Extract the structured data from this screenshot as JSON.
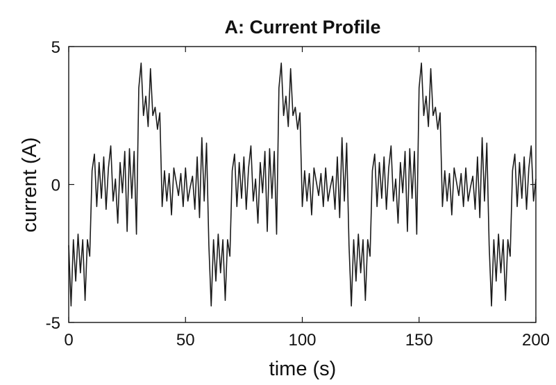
{
  "chart_data": {
    "type": "line",
    "title": "A: Current Profile",
    "xlabel": "time (s)",
    "ylabel": "current (A)",
    "xlim": [
      0,
      200
    ],
    "ylim": [
      -5,
      5
    ],
    "xticks": [
      0,
      50,
      100,
      150,
      200
    ],
    "yticks": [
      -5,
      0,
      5
    ],
    "xtick_labels": [
      "0",
      "50",
      "100",
      "150",
      "200"
    ],
    "ytick_labels": [
      "-5",
      "0",
      "5"
    ],
    "grid": false,
    "line_color": "#1a1a1a",
    "period_s": 60,
    "segments": [
      {
        "start": 0,
        "end": 10,
        "level": -2.5
      },
      {
        "start": 10,
        "end": 30,
        "level": 0.3
      },
      {
        "start": 30,
        "end": 40,
        "level": 3.0
      },
      {
        "start": 40,
        "end": 60,
        "level": -0.1
      }
    ],
    "series": [
      {
        "x": [
          0,
          1,
          2,
          3,
          4,
          5,
          6,
          7,
          8,
          9,
          10,
          11,
          12,
          13,
          14,
          15,
          16,
          17,
          18,
          19,
          20,
          21,
          22,
          23,
          24,
          25,
          26,
          27,
          28,
          29,
          30,
          31,
          32,
          33,
          34,
          35,
          36,
          37,
          38,
          39,
          40,
          41,
          42,
          43,
          44,
          45,
          46,
          47,
          48,
          49,
          50,
          51,
          52,
          53,
          54,
          55,
          56,
          57,
          58,
          59,
          60,
          61,
          62,
          63,
          64,
          65,
          66,
          67,
          68,
          69,
          70,
          71,
          72,
          73,
          74,
          75,
          76,
          77,
          78,
          79,
          80,
          81,
          82,
          83,
          84,
          85,
          86,
          87,
          88,
          89,
          90,
          91,
          92,
          93,
          94,
          95,
          96,
          97,
          98,
          99,
          100,
          101,
          102,
          103,
          104,
          105,
          106,
          107,
          108,
          109,
          110,
          111,
          112,
          113,
          114,
          115,
          116,
          117,
          118,
          119,
          120,
          121,
          122,
          123,
          124,
          125,
          126,
          127,
          128,
          129,
          130,
          131,
          132,
          133,
          134,
          135,
          136,
          137,
          138,
          139,
          140,
          141,
          142,
          143,
          144,
          145,
          146,
          147,
          148,
          149,
          150,
          151,
          152,
          153,
          154,
          155,
          156,
          157,
          158,
          159,
          160,
          161,
          162,
          163,
          164,
          165,
          166,
          167,
          168,
          169,
          170,
          171,
          172,
          173,
          174,
          175,
          176,
          177,
          178,
          179,
          180,
          181,
          182,
          183,
          184,
          185,
          186,
          187,
          188,
          189,
          190,
          191,
          192,
          193,
          194,
          195,
          196,
          197,
          198,
          199,
          200
        ],
        "y": [
          -2.2,
          -4.4,
          -2.0,
          -3.5,
          -1.8,
          -3.2,
          -2.0,
          -4.2,
          -2.0,
          -2.6,
          0.5,
          1.1,
          -0.8,
          0.8,
          -0.5,
          1.0,
          -0.9,
          0.6,
          1.4,
          -0.6,
          0.2,
          -1.4,
          0.8,
          -0.3,
          1.2,
          -1.7,
          1.3,
          -0.5,
          1.2,
          -1.8,
          3.5,
          4.4,
          2.5,
          3.2,
          2.1,
          4.2,
          2.5,
          2.8,
          2.0,
          2.6,
          -0.8,
          0.5,
          -0.6,
          0.4,
          -1.1,
          0.6,
          0.1,
          -0.4,
          0.4,
          -0.8,
          0.6,
          -0.6,
          -0.1,
          0.3,
          -0.9,
          1.0,
          -1.2,
          1.7,
          -0.6,
          1.5,
          -2.2,
          -4.4,
          -2.0,
          -3.5,
          -1.8,
          -3.2,
          -2.0,
          -4.2,
          -2.0,
          -2.6,
          0.5,
          1.1,
          -0.8,
          0.8,
          -0.5,
          1.0,
          -0.9,
          0.6,
          1.4,
          -0.6,
          0.2,
          -1.4,
          0.8,
          -0.3,
          1.2,
          -1.7,
          1.3,
          -0.5,
          1.2,
          -1.8,
          3.5,
          4.4,
          2.5,
          3.2,
          2.1,
          4.2,
          2.5,
          2.8,
          2.0,
          2.6,
          -0.8,
          0.5,
          -0.6,
          0.4,
          -1.1,
          0.6,
          0.1,
          -0.4,
          0.4,
          -0.8,
          0.6,
          -0.6,
          -0.1,
          0.3,
          -0.9,
          1.0,
          -1.2,
          1.7,
          -0.6,
          1.5,
          -2.2,
          -4.4,
          -2.0,
          -3.5,
          -1.8,
          -3.2,
          -2.0,
          -4.2,
          -2.0,
          -2.6,
          0.5,
          1.1,
          -0.8,
          0.8,
          -0.5,
          1.0,
          -0.9,
          0.6,
          1.4,
          -0.6,
          0.2,
          -1.4,
          0.8,
          -0.3,
          1.2,
          -1.7,
          1.3,
          -0.5,
          1.2,
          -1.8,
          3.5,
          4.4,
          2.5,
          3.2,
          2.1,
          4.2,
          2.5,
          2.8,
          2.0,
          2.6,
          -0.8,
          0.5,
          -0.6,
          0.4,
          -1.1,
          0.6,
          0.1,
          -0.4,
          0.4,
          -0.8,
          0.6,
          -0.6,
          -0.1,
          0.3,
          -0.9,
          1.0,
          -1.2,
          1.7,
          -0.6,
          1.5,
          -2.2,
          -4.4,
          -2.0,
          -3.5,
          -1.8,
          -3.2,
          -2.0,
          -4.2,
          -2.0,
          -2.6,
          0.5,
          1.1,
          -0.8,
          0.8,
          -0.5,
          1.0,
          -0.9,
          0.6,
          1.4,
          -0.6,
          0.2
        ]
      }
    ]
  }
}
